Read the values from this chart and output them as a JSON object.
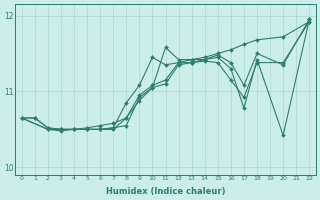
{
  "xlabel": "Humidex (Indice chaleur)",
  "bg_color": "#cceee8",
  "line_color": "#2e7d6e",
  "grid_color": "#aad8d0",
  "xlim": [
    -0.5,
    22.5
  ],
  "ylim": [
    9.9,
    12.15
  ],
  "yticks": [
    10,
    11,
    12
  ],
  "xticks": [
    0,
    1,
    2,
    3,
    4,
    5,
    6,
    7,
    8,
    9,
    10,
    11,
    12,
    13,
    14,
    15,
    16,
    17,
    18,
    19,
    20,
    21,
    22
  ],
  "series": [
    [
      10.65,
      10.65,
      10.52,
      10.5,
      10.5,
      10.5,
      10.5,
      10.5,
      10.65,
      10.88,
      11.05,
      11.58,
      11.42,
      11.42,
      11.42,
      11.45,
      11.3,
      10.78,
      11.42,
      null,
      10.42,
      null,
      11.95
    ],
    [
      10.65,
      10.65,
      10.52,
      10.5,
      10.5,
      10.5,
      10.5,
      10.52,
      10.85,
      11.08,
      11.45,
      11.35,
      11.38,
      11.38,
      11.42,
      11.48,
      11.38,
      11.08,
      11.5,
      null,
      11.35,
      null,
      11.95
    ],
    [
      10.65,
      null,
      10.5,
      10.48,
      10.5,
      10.5,
      10.5,
      10.52,
      10.55,
      10.92,
      11.05,
      11.1,
      11.35,
      11.38,
      11.4,
      11.38,
      11.15,
      10.92,
      11.38,
      null,
      11.38,
      null,
      11.92
    ],
    [
      10.65,
      null,
      10.5,
      10.5,
      10.5,
      10.52,
      10.55,
      10.58,
      10.65,
      10.95,
      11.08,
      11.15,
      11.38,
      11.42,
      11.45,
      11.5,
      11.55,
      11.62,
      11.68,
      null,
      11.72,
      null,
      11.92
    ]
  ]
}
